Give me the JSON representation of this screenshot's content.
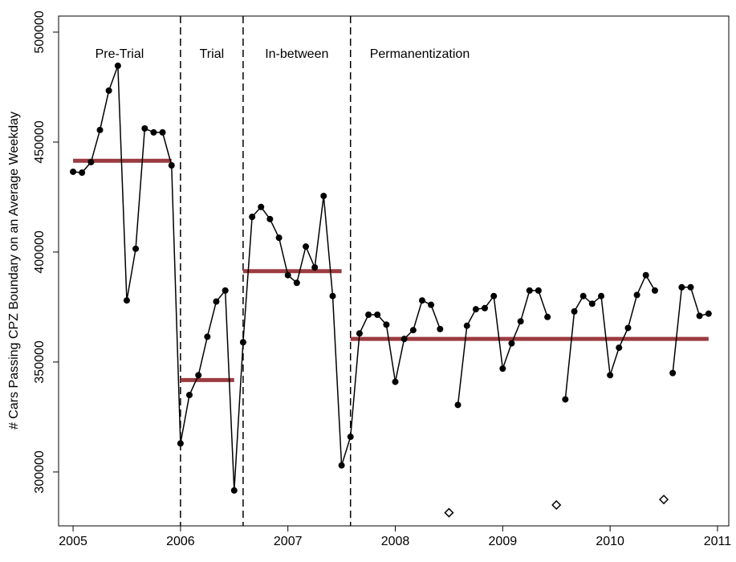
{
  "chart_data": {
    "type": "line",
    "y_label": "# Cars Passing CPZ Boundary on an Average Weekday",
    "xlim": [
      2004.865,
      2011.105
    ],
    "ylim": [
      275500,
      507300
    ],
    "xticks": [
      2005,
      2006,
      2007,
      2008,
      2009,
      2010,
      2011
    ],
    "yticks": [
      300000,
      350000,
      400000,
      450000,
      500000
    ],
    "dividers": [
      2006,
      2006.583,
      2007.583
    ],
    "regions": [
      "Pre-Trial",
      "Trial",
      "In-between",
      "Permanentization"
    ],
    "series": [
      {
        "color": "#000000",
        "marker": "circle",
        "x": [
          2005,
          2005.083,
          2005.167,
          2005.25,
          2005.333,
          2005.417,
          2005.5,
          2005.583,
          2005.667,
          2005.75,
          2005.833,
          2005.917,
          2006,
          2006.083,
          2006.167,
          2006.25,
          2006.333,
          2006.417,
          2006.5,
          2006.583,
          2006.667,
          2006.75,
          2006.833,
          2006.917,
          2007,
          2007.083,
          2007.167,
          2007.25,
          2007.333,
          2007.417,
          2007.5,
          2007.583,
          2007.667,
          2007.75,
          2007.833,
          2007.917,
          2008,
          2008.083,
          2008.167,
          2008.25,
          2008.333,
          2008.417,
          2008.5,
          2008.583,
          2008.667,
          2008.75,
          2008.833,
          2008.917,
          2009,
          2009.083,
          2009.167,
          2009.25,
          2009.333,
          2009.417,
          2009.5,
          2009.583,
          2009.667,
          2009.75,
          2009.833,
          2009.917,
          2010,
          2010.083,
          2010.167,
          2010.25,
          2010.333,
          2010.417,
          2010.5,
          2010.583,
          2010.667,
          2010.75,
          2010.833,
          2010.917
        ],
        "values": [
          436500,
          436100,
          440900,
          455500,
          473400,
          484700,
          378000,
          401500,
          456200,
          454400,
          454400,
          439400,
          313000,
          335000,
          344000,
          361500,
          377500,
          382500,
          291600,
          359000,
          416000,
          420500,
          415000,
          406500,
          389500,
          386000,
          402500,
          393000,
          425500,
          380000,
          303000,
          316000,
          363000,
          371500,
          371500,
          367000,
          341000,
          360500,
          364500,
          378000,
          376000,
          365000,
          null,
          330500,
          366500,
          374000,
          374500,
          380000,
          347000,
          358500,
          368500,
          382500,
          382500,
          370500,
          null,
          333000,
          373000,
          380000,
          376500,
          380000,
          344000,
          356500,
          365500,
          380500,
          389500,
          382500,
          null,
          345000,
          384000,
          384000,
          371000,
          372000
        ]
      },
      {
        "color": "#000000",
        "marker": "diamond",
        "x": [
          2008.5,
          2009.5,
          2010.5
        ],
        "values": [
          281500,
          285000,
          287500
        ]
      }
    ],
    "mean_segments": {
      "color": "#9b3b40",
      "x_start": [
        2005,
        2006,
        2006.583,
        2007.583
      ],
      "x_end": [
        2005.917,
        2006.5,
        2007.5,
        2010.917
      ],
      "values": [
        441500,
        341800,
        391300,
        360500
      ]
    }
  }
}
